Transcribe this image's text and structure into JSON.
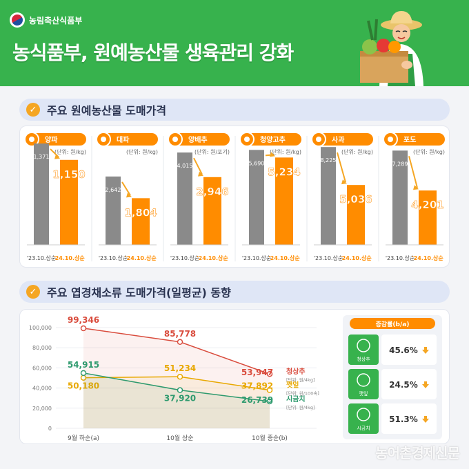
{
  "header": {
    "ministry": "농림축산식품부",
    "title": "농식품부, 원예농산물 생육관리 강화"
  },
  "section1_title": "주요 원예농산물 도매가격",
  "section2_title": "주요 엽경채소류 도매가격(일평균) 동향",
  "watermark": "농어촌경제신문",
  "colors": {
    "prev": "#8a8a8a",
    "curr": "#ff8c00",
    "green": "#37b24d",
    "red": "#d94c3d",
    "yellow": "#e8a800",
    "teal": "#2e9a6e"
  },
  "chart_data": [
    {
      "type": "bar",
      "title": "주요 원예농산물 도매가격",
      "categories": [
        "'23.10.상순",
        "'24.10.상순"
      ],
      "items": [
        {
          "name": "양파",
          "unit": "(단위: 원/kg)",
          "icon": "onion-icon",
          "values": [
            1371,
            1150
          ],
          "labels": [
            "1,371",
            "1,150"
          ],
          "ylim": [
            0,
            1400
          ]
        },
        {
          "name": "대파",
          "unit": "(단위: 원/kg)",
          "icon": "leek-icon",
          "values": [
            2642,
            1804
          ],
          "labels": [
            "2,642",
            "1,804"
          ],
          "ylim": [
            0,
            4000
          ]
        },
        {
          "name": "양배추",
          "unit": "(단위: 원/포기)",
          "icon": "cabbage-icon",
          "values": [
            4015,
            2946
          ],
          "labels": [
            "4,015",
            "2,946"
          ],
          "ylim": [
            0,
            4500
          ]
        },
        {
          "name": "청양고추",
          "unit": "(단위: 원/kg)",
          "icon": "pepper-icon",
          "values": [
            5690,
            5234
          ],
          "labels": [
            "5,690",
            "5,234"
          ],
          "ylim": [
            0,
            6200
          ]
        },
        {
          "name": "사과",
          "unit": "(단위: 원/kg)",
          "icon": "apple-icon",
          "values": [
            8225,
            5036
          ],
          "labels": [
            "8,225",
            "5,036"
          ],
          "ylim": [
            0,
            8700
          ]
        },
        {
          "name": "포도",
          "unit": "(단위: 원/kg)",
          "icon": "grape-icon",
          "values": [
            7289,
            4201
          ],
          "labels": [
            "7,289",
            "4,201"
          ],
          "ylim": [
            0,
            8000
          ]
        }
      ]
    },
    {
      "type": "line",
      "title": "주요 엽경채소류 도매가격(일평균) 동향",
      "x": [
        "9월 하순(a)",
        "10월 상순",
        "10월 중순(b)"
      ],
      "yticks": [
        "100,000",
        "80,000",
        "60,000",
        "40,000",
        "20,000",
        "0"
      ],
      "ylim": [
        0,
        100000
      ],
      "series": [
        {
          "name": "청상추",
          "unit": "[단위: 원/4kg]",
          "color": "#d94c3d",
          "values": [
            99346,
            85778,
            53947
          ],
          "labels": [
            "99,346",
            "85,778",
            "53,947"
          ]
        },
        {
          "name": "깻잎",
          "unit": "[단위: 원/100속]",
          "color": "#e8a800",
          "values": [
            50180,
            51234,
            37892
          ],
          "labels": [
            "50,180",
            "51,234",
            "37,892"
          ]
        },
        {
          "name": "시금치",
          "unit": "[단위: 원/4kg]",
          "color": "#2e9a6e",
          "values": [
            54915,
            37920,
            26739
          ],
          "labels": [
            "54,915",
            "37,920",
            "26,739"
          ]
        }
      ],
      "change_title": "증감률(b/a)",
      "change": [
        {
          "name": "청상추",
          "icon": "lettuce-icon",
          "value": "45.6%"
        },
        {
          "name": "깻잎",
          "icon": "perilla-leaf-icon",
          "value": "24.5%"
        },
        {
          "name": "시금치",
          "icon": "spinach-icon",
          "value": "51.3%"
        }
      ]
    }
  ]
}
